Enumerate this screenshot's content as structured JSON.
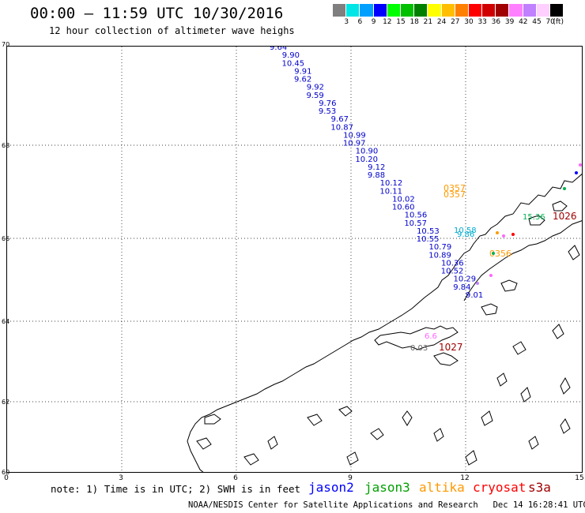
{
  "header": {
    "title": "00:00 – 11:59 UTC 10/30/2016",
    "subtitle": "12 hour collection of altimeter wave heighs"
  },
  "legend": {
    "colors": [
      "#7f7f7f",
      "#00e5e5",
      "#00a0ff",
      "#0000ff",
      "#00ff00",
      "#00c000",
      "#008000",
      "#ffff00",
      "#ffbf00",
      "#ff8000",
      "#ff0000",
      "#d00000",
      "#a00000",
      "#ff80ff",
      "#c080ff",
      "#ffd0ff",
      "#000000"
    ],
    "labels": [
      "3",
      "6",
      "9",
      "12",
      "15",
      "18",
      "21",
      "24",
      "27",
      "30",
      "33",
      "36",
      "39",
      "42",
      "45",
      "70",
      "(ft)"
    ]
  },
  "axes": {
    "y_labels": [
      "70",
      "68",
      "66",
      "64",
      "62",
      "60"
    ],
    "x_labels": [
      "0",
      "3",
      "6",
      "9",
      "12",
      "15"
    ]
  },
  "track_blue": [
    "9.64",
    "9.90",
    "10.45",
    "9.91",
    "9.62",
    "9.92",
    "9.59",
    "9.76",
    "9.53",
    "9.67",
    "10.87",
    "10.99",
    "10.97",
    "10.90",
    "10.20",
    "9.12",
    "9.88",
    "10.12",
    "10.11",
    "10.02",
    "10.60",
    "10.56",
    "10.57",
    "10.53",
    "10.55",
    "10.79",
    "10.89",
    "10.36",
    "10.52",
    "10.29",
    "9.84",
    "9.01"
  ],
  "track_cyan": [
    "10.58",
    "9.86"
  ],
  "orange_labels": [
    "0357",
    "0357",
    "0356"
  ],
  "darkred_labels": [
    "1026",
    "1027"
  ],
  "green_labels": [
    "15.36"
  ],
  "gray_labels": [
    "0.03"
  ],
  "pink_labels": [
    "6.6"
  ],
  "footer": {
    "note": "note: 1) Time is in UTC; 2) SWH is in feet",
    "missions": [
      {
        "name": "jason2",
        "color": "#0000ff"
      },
      {
        "name": "jason3",
        "color": "#00a000"
      },
      {
        "name": "altika",
        "color": "#ff9900"
      },
      {
        "name": "cryosat",
        "color": "#ff0000"
      },
      {
        "name": "s3a",
        "color": "#a00000"
      }
    ],
    "credit": "NOAA/NESDIS Center for Satellite Applications and Research   Dec 14 16:28:41 UTC 2016"
  }
}
